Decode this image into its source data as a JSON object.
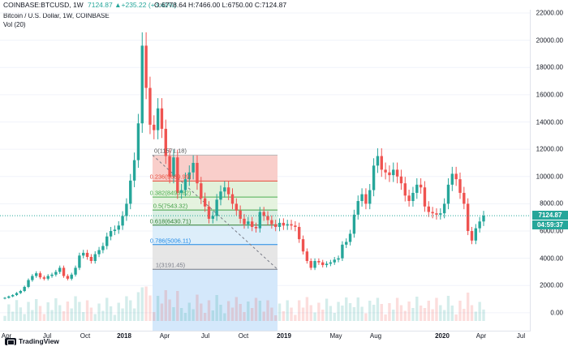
{
  "header": {
    "symbol": "COINBASE:BTCUSD, 1W",
    "change": "7124.87  ▲+235.22 (+3.41%)",
    "ohlc": "O:6778.64  H:7466.00  L:6750.00  C:7124.87",
    "title": "Bitcoin / U.S. Dollar, 1W, COINBASE",
    "volume": "Vol (20)"
  },
  "price_axis": {
    "labels": [
      "22000.00",
      "20000.00",
      "18000.00",
      "16000.00",
      "14000.00",
      "12000.00",
      "10000.00",
      "8000.00",
      "6000.00",
      "4000.00",
      "2000.00",
      "0.00"
    ],
    "last_price": "7124.87",
    "countdown": "04:59:37"
  },
  "time_axis": [
    "Apr",
    "Jul",
    "Oct",
    "2018",
    "Apr",
    "Jul",
    "Oct",
    "2019",
    "May",
    "Aug",
    "2020",
    "Apr",
    "Jul"
  ],
  "fibonacci": [
    {
      "ratio": "0",
      "label": "0(11571.18)",
      "color": "#b8b8b8",
      "fill": "#f8c9c4",
      "value": 11571.18
    },
    {
      "ratio": "0.236",
      "label": "0.236(9669.99)",
      "color": "#e74c3c",
      "fill": "#dff0d6",
      "value": 9669.99
    },
    {
      "ratio": "0.382",
      "label": "0.382(8493.82)",
      "color": "#4caf50",
      "fill": "#e2f2dc",
      "value": 8493.82
    },
    {
      "ratio": "0.5",
      "label": "0.5(7543.32)",
      "color": "#43a047",
      "fill": "#d6ede0",
      "value": 7543.32
    },
    {
      "ratio": "0.618",
      "label": "0.618(6430.71)",
      "color": "#2e7d32",
      "fill": "#d9ecfa",
      "value": 6430.71
    },
    {
      "ratio": "0.786",
      "label": "0.786(5006.11)",
      "color": "#1e88e5",
      "fill": "#e3e3e3",
      "value": 5006.11
    },
    {
      "ratio": "1",
      "label": "1(3191.45)",
      "color": "#787b86",
      "fill": null,
      "value": 3191.45
    }
  ],
  "branding": {
    "name": "TradingView"
  },
  "colors": {
    "up": "#26a69a",
    "down": "#ef5350",
    "fill_blue": "#cfe6fb"
  },
  "chart_data": {
    "type": "candlestick",
    "title": "Bitcoin / U.S. Dollar, 1W, COINBASE",
    "y_range": [
      -600,
      22000
    ],
    "x_labels": [
      "Apr",
      "Jul",
      "Oct",
      "2018",
      "Apr",
      "Jul",
      "Oct",
      "2019",
      "May",
      "Aug",
      "2020",
      "Apr",
      "Jul"
    ],
    "close_path": [
      1100,
      1200,
      1300,
      1450,
      1600,
      1900,
      2400,
      2700,
      2900,
      2600,
      2500,
      2700,
      2800,
      3000,
      3300,
      2700,
      2500,
      2800,
      3300,
      4200,
      4400,
      4100,
      3800,
      4300,
      4600,
      4900,
      5600,
      6000,
      6100,
      6400,
      7100,
      8000,
      9700,
      11200,
      13900,
      19600,
      16500,
      13800,
      13400,
      15000,
      13500,
      11500,
      10000,
      11400,
      8800,
      9000,
      9800,
      10300,
      11000,
      9500,
      8400,
      7800,
      6900,
      7100,
      8300,
      8900,
      9200,
      8700,
      8000,
      7500,
      6900,
      6500,
      6700,
      6300,
      6200,
      7400,
      7100,
      6800,
      6500,
      6300,
      6600,
      6400,
      6500,
      6400,
      6300,
      5400,
      4500,
      3800,
      3300,
      3800,
      3700,
      3500,
      3600,
      3700,
      3900,
      4000,
      5000,
      5200,
      5800,
      7200,
      8200,
      8700,
      8000,
      9000,
      10800,
      11500,
      10500,
      10300,
      10100,
      10500,
      10000,
      9500,
      8600,
      8200,
      8800,
      9400,
      9200,
      7800,
      7400,
      7300,
      7200,
      7300,
      8000,
      9400,
      10200,
      9800,
      8800,
      8000,
      6000,
      5300,
      6200,
      6700,
      7124.87
    ],
    "volume_relative": true
  }
}
